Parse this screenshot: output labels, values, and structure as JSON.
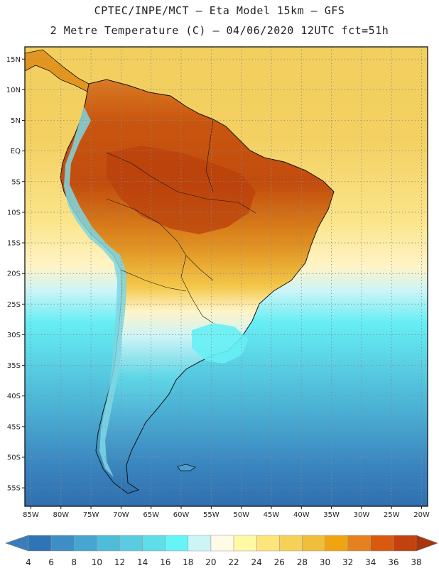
{
  "header": {
    "line1": "CPTEC/INPE/MCT —  Eta Model 15km — GFS",
    "line2": "2 Metre Temperature (C) — 04/06/2020 12UTC fct=51h"
  },
  "map": {
    "lat_labels": [
      "15N",
      "10N",
      "5N",
      "EQ",
      "5S",
      "10S",
      "15S",
      "20S",
      "25S",
      "30S",
      "35S",
      "40S",
      "45S",
      "50S",
      "55S"
    ],
    "lon_labels": [
      "85W",
      "80W",
      "75W",
      "70W",
      "65W",
      "60W",
      "55W",
      "50W",
      "45W",
      "40W",
      "35W",
      "30W",
      "25W",
      "20W"
    ],
    "lon_range": [
      -86,
      -19
    ],
    "lat_range": [
      17,
      -58
    ]
  },
  "colorbar": {
    "labels": [
      "4",
      "6",
      "8",
      "10",
      "12",
      "14",
      "16",
      "18",
      "20",
      "22",
      "24",
      "26",
      "28",
      "30",
      "32",
      "34",
      "36",
      "38"
    ],
    "colors": [
      "#3b7dbb",
      "#2f74b5",
      "#3d8ec6",
      "#46a6cf",
      "#4fbcd9",
      "#5bcbe2",
      "#5fdde9",
      "#66f4f6",
      "#cdf4f7",
      "#fffbe4",
      "#fff9a6",
      "#fde47b",
      "#f6d158",
      "#efbe3b",
      "#f0a413",
      "#e48120",
      "#d85a0f",
      "#c2410c",
      "#a8360d"
    ]
  }
}
